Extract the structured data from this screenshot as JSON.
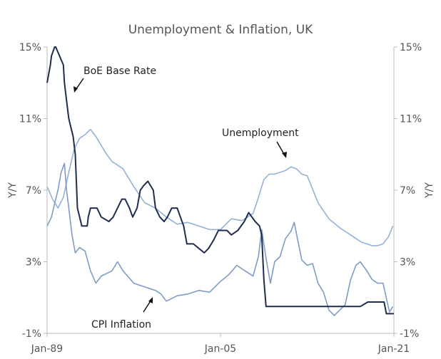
{
  "chart_data": {
    "type": "line",
    "title": "Unemployment & Inflation, UK",
    "ylabel_left": "Y/Y",
    "ylabel_right": "Y/Y",
    "y_ticks": [
      "15%",
      "11%",
      "7%",
      "3%",
      "-1%"
    ],
    "y_tick_values": [
      15,
      11,
      7,
      3,
      -1
    ],
    "ylim": [
      -1,
      15
    ],
    "x_ticks": [
      "Jan-89",
      "Jan-05",
      "Jan-21"
    ],
    "x_tick_values": [
      1989,
      2005,
      2021
    ],
    "xlim": [
      1989,
      2021
    ],
    "grid": false,
    "colors": {
      "boe": "#1f2d4f",
      "unemployment": "#94b2d6",
      "cpi": "#7f9bc8",
      "text": "#555555",
      "axis": "#bbbbbb"
    },
    "annotations": [
      "BoE Base Rate",
      "Unemployment",
      "CPI Inflation"
    ],
    "series": [
      {
        "key": "boe",
        "x": [
          1989.0,
          1989.3,
          1989.4,
          1989.7,
          1989.8,
          1990.5,
          1990.6,
          1990.8,
          1991.0,
          1991.2,
          1991.4,
          1991.6,
          1991.8,
          1992.0,
          1992.2,
          1992.5,
          1992.7,
          1992.8,
          1993.0,
          1993.6,
          1994.0,
          1994.7,
          1995.1,
          1995.5,
          1995.9,
          1996.2,
          1996.6,
          1996.9,
          1997.3,
          1997.6,
          1997.9,
          1998.3,
          1998.8,
          1999.0,
          1999.4,
          1999.8,
          2000.1,
          2000.5,
          2001.0,
          2001.3,
          2001.6,
          2001.9,
          2002.5,
          2003.0,
          2003.5,
          2003.9,
          2004.4,
          2004.8,
          2005.6,
          2006.0,
          2006.6,
          2007.2,
          2007.6,
          2007.9,
          2008.2,
          2008.6,
          2008.8,
          2009.0,
          2009.2,
          2016.5,
          2017.9,
          2018.6,
          2020.1,
          2020.3,
          2021.0
        ],
        "values": [
          13.0,
          14.0,
          14.5,
          15.0,
          15.0,
          14.0,
          13.0,
          12.0,
          11.0,
          10.5,
          10.0,
          9.0,
          6.0,
          5.5,
          5.0,
          5.0,
          5.0,
          5.5,
          6.0,
          6.0,
          5.5,
          5.25,
          5.5,
          6.0,
          6.5,
          6.5,
          6.0,
          5.5,
          6.0,
          7.0,
          7.25,
          7.5,
          7.0,
          6.0,
          5.5,
          5.25,
          5.5,
          6.0,
          6.0,
          5.5,
          5.0,
          4.0,
          4.0,
          3.75,
          3.5,
          3.75,
          4.25,
          4.75,
          4.75,
          4.5,
          4.75,
          5.25,
          5.75,
          5.5,
          5.25,
          5.0,
          4.5,
          2.0,
          0.5,
          0.5,
          0.5,
          0.75,
          0.75,
          0.1,
          0.1
        ]
      },
      {
        "key": "unemployment",
        "x": [
          1989.0,
          1989.5,
          1990.0,
          1990.5,
          1991.0,
          1991.5,
          1992.0,
          1992.5,
          1993.0,
          1993.5,
          1994.0,
          1994.5,
          1995.0,
          1996.0,
          1997.0,
          1998.0,
          1999.0,
          2000.0,
          2001.0,
          2002.0,
          2003.0,
          2004.0,
          2005.0,
          2006.0,
          2007.0,
          2008.0,
          2008.5,
          2009.0,
          2009.5,
          2010.0,
          2011.0,
          2011.5,
          2012.0,
          2012.5,
          2013.0,
          2014.0,
          2015.0,
          2016.0,
          2017.0,
          2018.0,
          2019.0,
          2019.5,
          2020.0,
          2020.5,
          2020.9
        ],
        "values": [
          7.2,
          6.5,
          6.0,
          6.6,
          8.0,
          9.3,
          9.9,
          10.1,
          10.4,
          10.0,
          9.5,
          9.0,
          8.6,
          8.2,
          7.2,
          6.3,
          6.0,
          5.5,
          5.1,
          5.2,
          5.0,
          4.8,
          4.8,
          5.4,
          5.3,
          5.7,
          6.6,
          7.6,
          7.9,
          7.9,
          8.1,
          8.3,
          8.2,
          7.9,
          7.8,
          6.3,
          5.4,
          4.9,
          4.5,
          4.1,
          3.9,
          3.9,
          4.0,
          4.4,
          5.0
        ]
      },
      {
        "key": "cpi",
        "x": [
          1989.0,
          1989.4,
          1989.8,
          1990.0,
          1990.3,
          1990.6,
          1990.8,
          1991.0,
          1991.3,
          1991.6,
          1992.0,
          1992.5,
          1993.0,
          1993.5,
          1994.0,
          1995.0,
          1995.5,
          1996.0,
          1997.0,
          1997.5,
          1998.0,
          1999.0,
          1999.5,
          2000.0,
          2001.0,
          2002.0,
          2002.5,
          2003.0,
          2004.0,
          2005.0,
          2005.8,
          2006.5,
          2007.0,
          2007.5,
          2008.0,
          2008.5,
          2008.8,
          2009.2,
          2009.6,
          2010.0,
          2010.5,
          2011.0,
          2011.5,
          2011.8,
          2012.5,
          2013.0,
          2013.5,
          2014.0,
          2014.5,
          2015.0,
          2015.5,
          2016.0,
          2016.5,
          2017.0,
          2017.5,
          2017.9,
          2018.5,
          2019.0,
          2019.5,
          2020.0,
          2020.4,
          2020.6,
          2020.9
        ],
        "values": [
          5.0,
          5.5,
          6.5,
          7.0,
          8.0,
          8.5,
          7.0,
          6.0,
          4.5,
          3.5,
          3.8,
          3.6,
          2.5,
          1.8,
          2.2,
          2.5,
          3.0,
          2.5,
          1.8,
          1.7,
          1.6,
          1.4,
          1.2,
          0.8,
          1.1,
          1.2,
          1.3,
          1.4,
          1.3,
          1.9,
          2.3,
          2.8,
          2.6,
          2.4,
          2.2,
          3.3,
          4.8,
          3.2,
          1.8,
          3.0,
          3.3,
          4.3,
          4.7,
          5.2,
          3.1,
          2.8,
          2.9,
          1.8,
          1.3,
          0.3,
          0.0,
          0.3,
          0.6,
          2.0,
          2.8,
          3.0,
          2.5,
          2.0,
          1.8,
          1.8,
          0.7,
          0.2,
          0.5
        ]
      }
    ]
  }
}
